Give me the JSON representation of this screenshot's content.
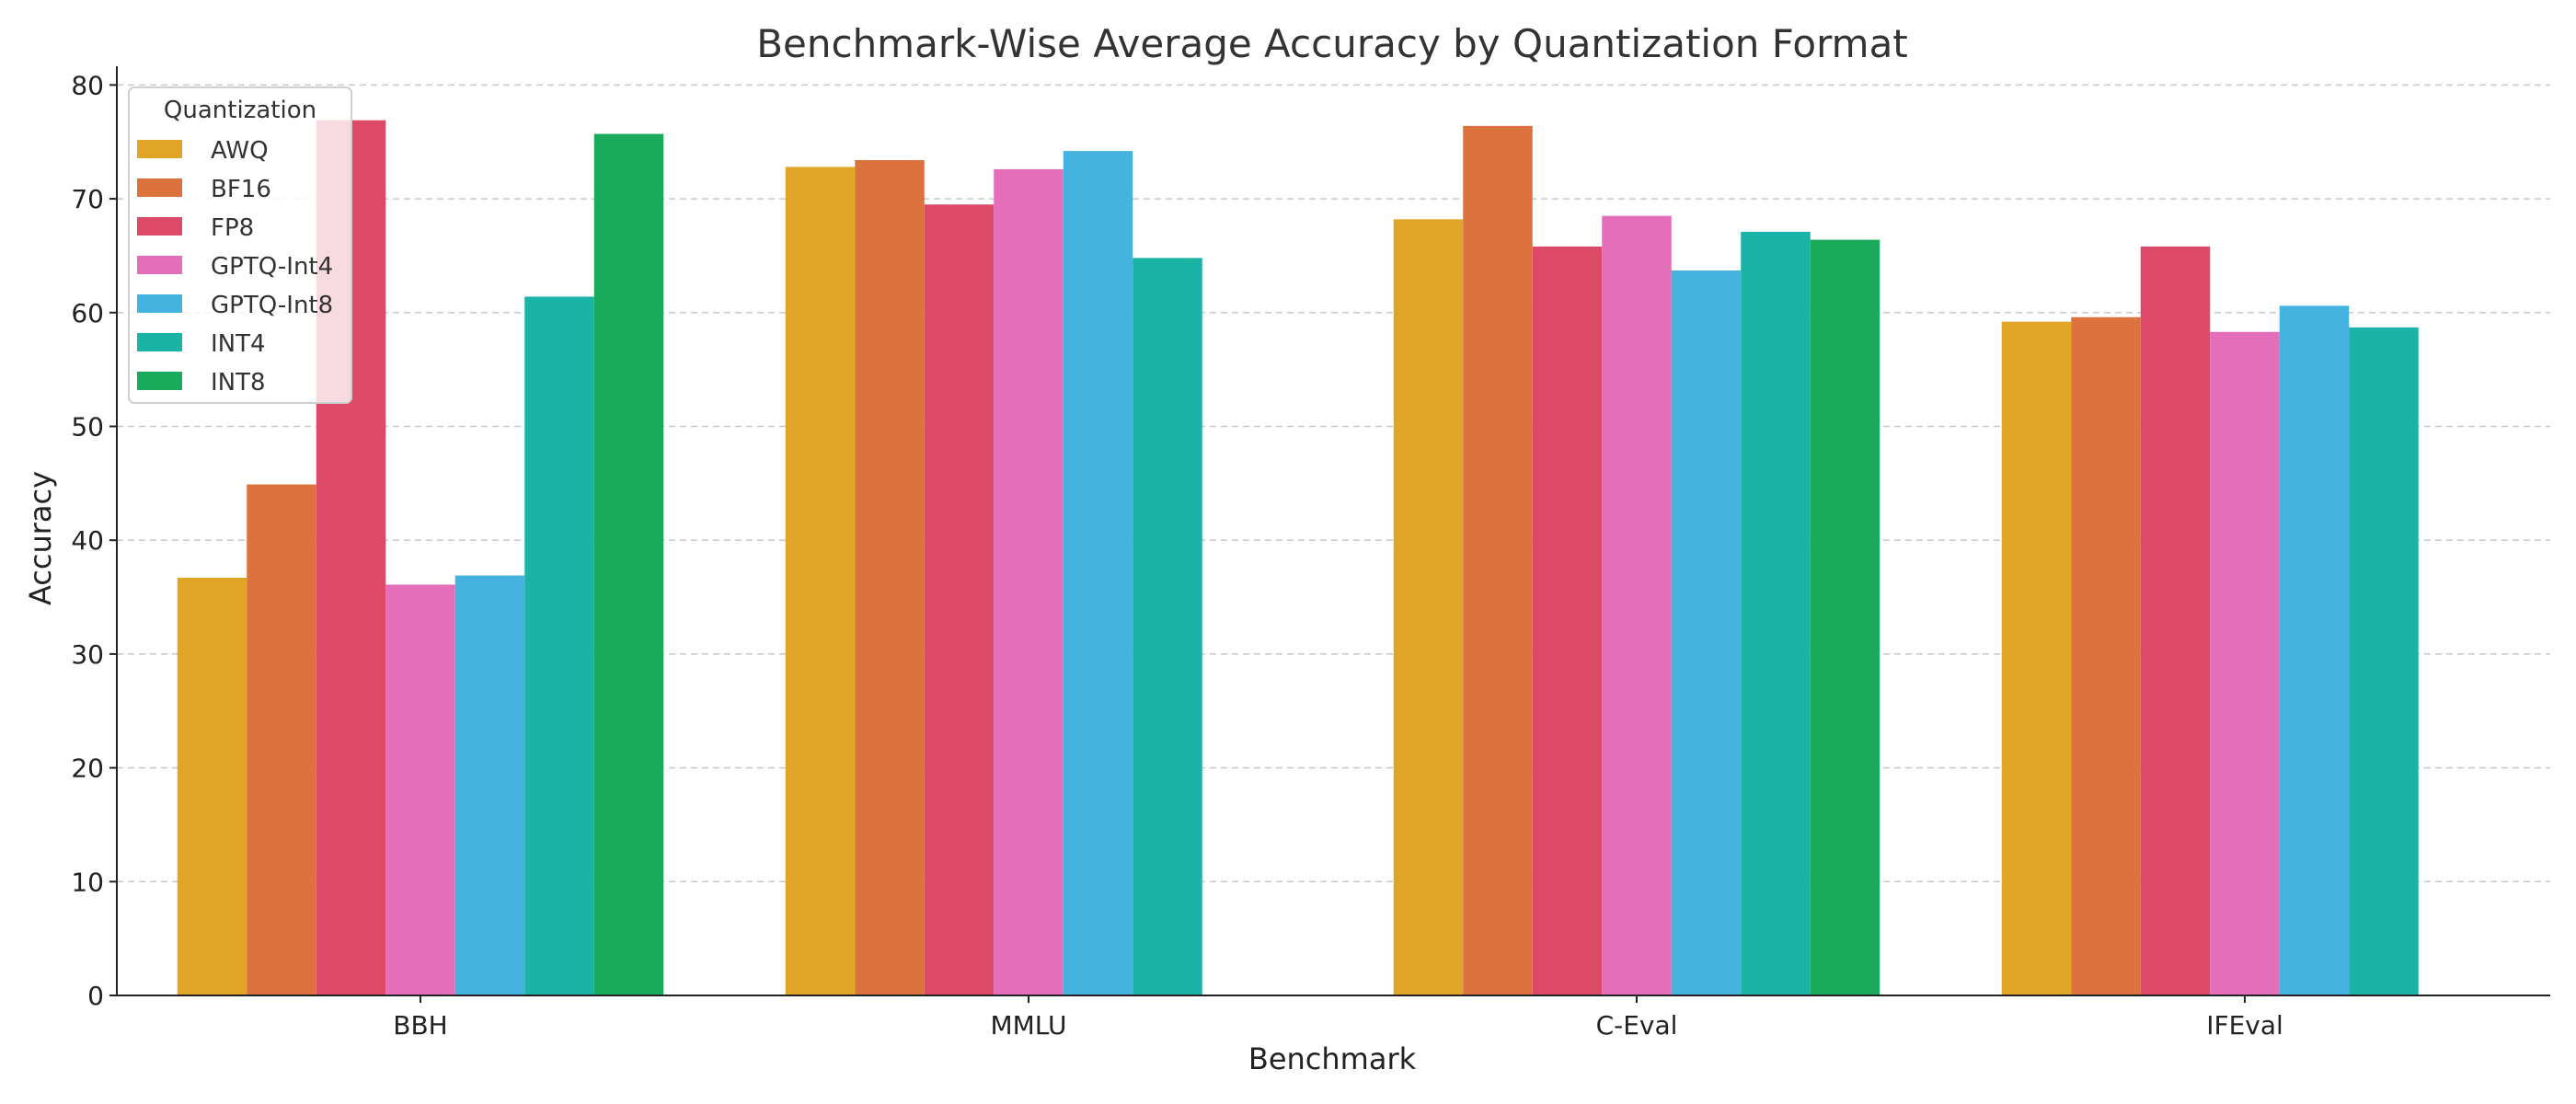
{
  "chart_data": {
    "type": "bar",
    "title": "Benchmark-Wise Average Accuracy by Quantization Format",
    "xlabel": "Benchmark",
    "ylabel": "Accuracy",
    "ylim": [
      0,
      81
    ],
    "yticks": [
      0,
      10,
      20,
      30,
      40,
      50,
      60,
      70,
      80
    ],
    "grid": "horizontal dashed",
    "legend": {
      "title": "Quantization",
      "placement": "top-left"
    },
    "categories": [
      "BBH",
      "MMLU",
      "C-Eval",
      "IFEval"
    ],
    "series": [
      {
        "name": "AWQ",
        "color": "#E0A526",
        "values": [
          36.7,
          72.8,
          68.2,
          59.2
        ]
      },
      {
        "name": "BF16",
        "color": "#DC723D",
        "values": [
          44.9,
          73.4,
          76.4,
          59.6
        ]
      },
      {
        "name": "FP8",
        "color": "#DC4A68",
        "values": [
          76.9,
          69.5,
          65.8,
          65.8
        ]
      },
      {
        "name": "GPTQ-Int4",
        "color": "#E46EBA",
        "values": [
          36.1,
          72.6,
          68.5,
          58.3
        ]
      },
      {
        "name": "GPTQ-Int8",
        "color": "#45B3E0",
        "values": [
          36.9,
          74.2,
          63.7,
          60.6
        ]
      },
      {
        "name": "INT4",
        "color": "#1AB3A6",
        "values": [
          61.4,
          64.8,
          67.1,
          58.7
        ]
      },
      {
        "name": "INT8",
        "color": "#1AAA5C",
        "values": [
          75.7,
          null,
          66.4,
          null
        ]
      }
    ]
  }
}
